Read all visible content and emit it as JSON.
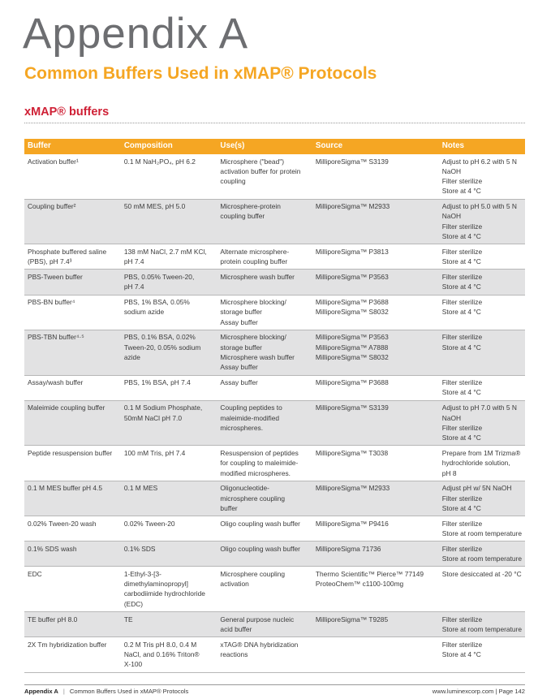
{
  "header": {
    "title": "Appendix A",
    "subtitle": "Common Buffers Used in xMAP® Protocols",
    "section": "xMAP® buffers"
  },
  "table": {
    "columns": [
      "Buffer",
      "Composition",
      "Use(s)",
      "Source",
      "Notes"
    ],
    "rows": [
      {
        "buffer": [
          "Activation buffer¹"
        ],
        "composition": [
          "0.1 M NaH₂PO₄, pH 6.2"
        ],
        "uses": [
          "Microsphere (\"bead\")",
          "activation buffer for protein",
          "coupling"
        ],
        "source": [
          "MilliporeSigma™ S3139"
        ],
        "notes": [
          "Adjust to pH 6.2 with 5 N",
          "NaOH",
          "Filter sterilize",
          "Store at 4 °C"
        ]
      },
      {
        "buffer": [
          "Coupling buffer²"
        ],
        "composition": [
          "50 mM MES, pH 5.0"
        ],
        "uses": [
          "Microsphere-protein",
          "coupling buffer"
        ],
        "source": [
          "MilliporeSigma™ M2933"
        ],
        "notes": [
          "Adjust to pH 5.0 with 5 N",
          "NaOH",
          "Filter sterilize",
          "Store at 4 °C"
        ]
      },
      {
        "buffer": [
          "Phosphate buffered saline",
          "(PBS), pH 7.4³"
        ],
        "composition": [
          "138 mM NaCl, 2.7 mM KCl,",
          "pH 7.4"
        ],
        "uses": [
          "Alternate microsphere-",
          "protein coupling buffer"
        ],
        "source": [
          "MilliporeSigma™ P3813"
        ],
        "notes": [
          "Filter sterilize",
          "Store at 4 °C"
        ]
      },
      {
        "buffer": [
          "PBS-Tween buffer"
        ],
        "composition": [
          "PBS, 0.05% Tween-20,",
          "pH 7.4"
        ],
        "uses": [
          "Microsphere wash buffer"
        ],
        "source": [
          "MilliporeSigma™ P3563"
        ],
        "notes": [
          "Filter sterilize",
          "Store at 4 °C"
        ]
      },
      {
        "buffer": [
          "PBS-BN buffer⁴"
        ],
        "composition": [
          "PBS, 1% BSA, 0.05%",
          "sodium azide"
        ],
        "uses": [
          "Microsphere blocking/",
          "storage buffer",
          "Assay buffer"
        ],
        "source": [
          "MilliporeSigma™ P3688",
          "MilliporeSigma™ S8032"
        ],
        "notes": [
          "Filter sterilize",
          "Store at 4 °C"
        ]
      },
      {
        "buffer": [
          "PBS-TBN buffer⁴·⁵"
        ],
        "composition": [
          "PBS, 0.1% BSA, 0.02%",
          "Tween-20, 0.05% sodium",
          "azide"
        ],
        "uses": [
          "Microsphere blocking/",
          "storage buffer",
          "Microsphere wash buffer",
          "Assay buffer"
        ],
        "source": [
          "MilliporeSigma™ P3563",
          "MilliporeSigma™ A7888",
          "MilliporeSigma™ S8032"
        ],
        "notes": [
          "Filter sterilize",
          "Store at 4 °C"
        ]
      },
      {
        "buffer": [
          "Assay/wash buffer"
        ],
        "composition": [
          "PBS, 1% BSA, pH 7.4"
        ],
        "uses": [
          "Assay buffer"
        ],
        "source": [
          "MilliporeSigma™ P3688"
        ],
        "notes": [
          "Filter sterilize",
          "Store at 4 °C"
        ]
      },
      {
        "buffer": [
          "Maleimide coupling buffer"
        ],
        "composition": [
          "0.1 M Sodium Phosphate,",
          "50mM NaCl pH 7.0"
        ],
        "uses": [
          "Coupling peptides to",
          "maleimide-modified",
          "microspheres."
        ],
        "source": [
          "MilliporeSigma™ S3139"
        ],
        "notes": [
          "Adjust to pH 7.0 with 5 N",
          "NaOH",
          "Filter sterilize",
          "Store at 4 °C"
        ]
      },
      {
        "buffer": [
          "Peptide resuspension buffer"
        ],
        "composition": [
          "100 mM Tris, pH 7.4"
        ],
        "uses": [
          "Resuspension of peptides",
          "for coupling to maleimide-",
          "modified microspheres."
        ],
        "source": [
          "MilliporeSigma™ T3038"
        ],
        "notes": [
          "Prepare from 1M Trizma®",
          "hydrochloride solution,",
          "pH 8"
        ]
      },
      {
        "buffer": [
          "0.1 M MES buffer pH 4.5"
        ],
        "composition": [
          "0.1 M MES"
        ],
        "uses": [
          "Oligonucleotide-",
          "microsphere coupling",
          "buffer"
        ],
        "source": [
          "MilliporeSigma™ M2933"
        ],
        "notes": [
          "Adjust pH w/ 5N NaOH",
          "Filter sterilize",
          "Store at 4 °C"
        ]
      },
      {
        "buffer": [
          "0.02% Tween-20 wash"
        ],
        "composition": [
          "0.02% Tween-20"
        ],
        "uses": [
          "Oligo coupling wash buffer"
        ],
        "source": [
          "MilliporeSigma™ P9416"
        ],
        "notes": [
          "Filter sterilize",
          "Store at room temperature"
        ]
      },
      {
        "buffer": [
          "0.1% SDS wash"
        ],
        "composition": [
          "0.1% SDS"
        ],
        "uses": [
          "Oligo coupling wash buffer"
        ],
        "source": [
          "MilliporeSigma 71736"
        ],
        "notes": [
          "Filter sterilize",
          "Store at room temperature"
        ]
      },
      {
        "buffer": [
          "EDC"
        ],
        "composition": [
          "1-Ethyl-3-[3-",
          "dimethylaminopropyl]",
          "carbodiimide hydrochloride",
          "(EDC)"
        ],
        "uses": [
          "Microsphere coupling",
          "activation"
        ],
        "source": [
          "Thermo Scientific™ Pierce™ 77149",
          "ProteoChem™ c1100-100mg"
        ],
        "notes": [
          "Store desiccated at -20 °C"
        ]
      },
      {
        "buffer": [
          "TE buffer pH 8.0"
        ],
        "composition": [
          "TE"
        ],
        "uses": [
          "General purpose nucleic",
          "acid buffer"
        ],
        "source": [
          "MilliporeSigma™ T9285"
        ],
        "notes": [
          "Filter sterilize",
          "Store at room temperature"
        ]
      },
      {
        "buffer": [
          "2X Tm hybridization buffer"
        ],
        "composition": [
          "0.2 M Tris pH 8.0, 0.4 M",
          "NaCl, and 0.16% Triton®",
          "X-100"
        ],
        "uses": [
          "xTAG® DNA hybridization",
          "reactions"
        ],
        "source": [],
        "notes": [
          "Filter sterilize",
          "Store at 4 °C"
        ]
      }
    ]
  },
  "footer": {
    "left_bold": "Appendix A",
    "left_sep": "|",
    "left_text": "Common Buffers Used in xMAP® Protocols",
    "right": "www.luminexcorp.com | Page 142"
  }
}
